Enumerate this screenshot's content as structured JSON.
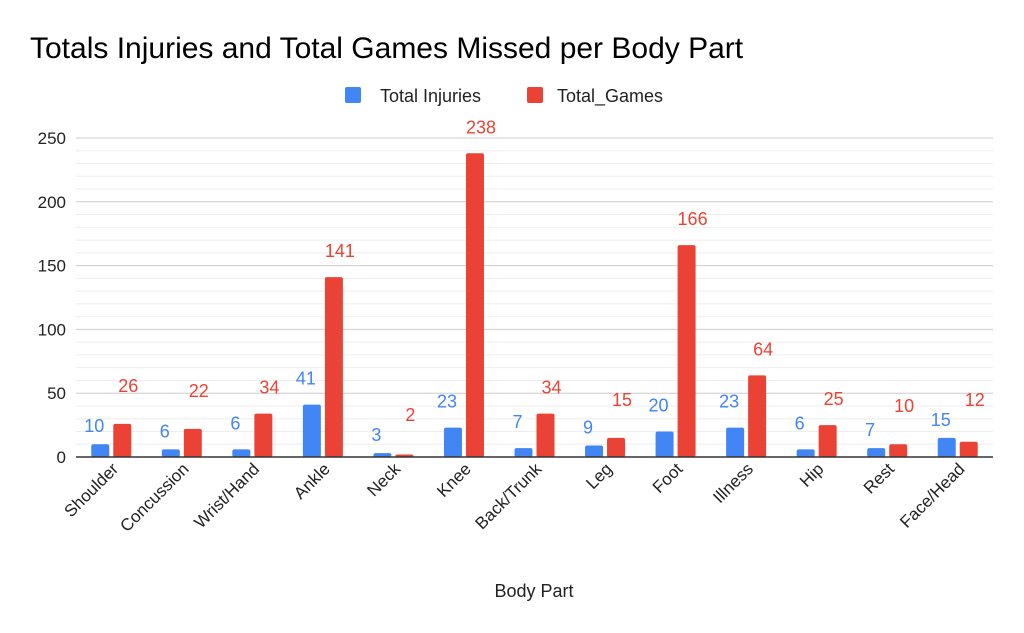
{
  "chart_data": {
    "type": "bar",
    "title": "Totals Injuries and Total Games Missed per Body Part",
    "xlabel": "Body Part",
    "ylabel": "",
    "ylim": [
      0,
      250
    ],
    "yticks": [
      0,
      50,
      100,
      150,
      200,
      250
    ],
    "grid": true,
    "legend_position": "top",
    "categories": [
      "Shoulder",
      "Concussion",
      "Wrist/Hand",
      "Ankle",
      "Neck",
      "Knee",
      "Back/Trunk",
      "Leg",
      "Foot",
      "Illness",
      "Hip",
      "Rest",
      "Face/Head"
    ],
    "series": [
      {
        "name": "Total Injuries",
        "color": "#4285f4",
        "values": [
          10,
          6,
          6,
          41,
          3,
          23,
          7,
          9,
          20,
          23,
          6,
          7,
          15
        ]
      },
      {
        "name": "Total_Games",
        "color": "#ea4335",
        "values": [
          26,
          22,
          34,
          141,
          2,
          238,
          34,
          15,
          166,
          64,
          25,
          10,
          12
        ]
      }
    ]
  }
}
